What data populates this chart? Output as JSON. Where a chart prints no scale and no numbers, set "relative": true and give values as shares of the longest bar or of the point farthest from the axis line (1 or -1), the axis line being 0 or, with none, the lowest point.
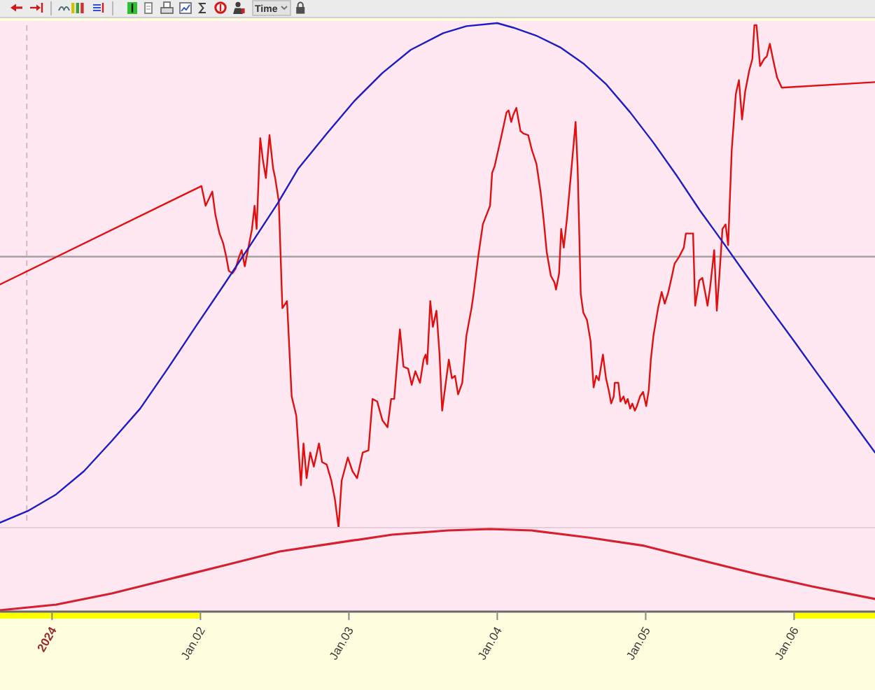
{
  "chart_data": [
    {
      "type": "line",
      "relative": true,
      "xlim": [
        "2023-12-31T15:35",
        "2024-01-06T13:05"
      ],
      "annotations": [
        "Time"
      ],
      "ref_lines": [
        {
          "axis": "y",
          "value": 0.537,
          "color": "#a8a0a4"
        },
        {
          "axis": "x",
          "value": "2023-12-31T19:55",
          "color": "#dcb4c4",
          "line_style": "dashed"
        }
      ],
      "series": [
        {
          "color": "#e01010",
          "x": [
            "2023-12-31T15:35",
            "2024-01-02T00:10",
            "2024-01-02T00:50",
            "2024-01-02T01:55",
            "2024-01-02T02:25",
            "2024-01-02T03:05",
            "2024-01-02T03:40",
            "2024-01-02T04:10",
            "2024-01-02T04:35",
            "2024-01-02T05:10",
            "2024-01-02T05:40",
            "2024-01-02T06:15",
            "2024-01-02T06:40",
            "2024-01-02T07:10",
            "2024-01-02T07:45",
            "2024-01-02T08:20",
            "2024-01-02T08:45",
            "2024-01-02T09:05",
            "2024-01-02T09:40",
            "2024-01-02T10:05",
            "2024-01-02T10:35",
            "2024-01-02T11:10",
            "2024-01-02T11:45",
            "2024-01-02T12:05",
            "2024-01-02T12:40",
            "2024-01-02T13:15",
            "2024-01-02T14:00",
            "2024-01-02T14:45",
            "2024-01-02T15:30",
            "2024-01-02T16:15",
            "2024-01-02T16:40",
            "2024-01-02T17:10",
            "2024-01-02T17:45",
            "2024-01-02T18:20",
            "2024-01-02T19:10",
            "2024-01-02T19:40",
            "2024-01-02T20:25",
            "2024-01-02T21:10",
            "2024-01-02T21:45",
            "2024-01-02T22:20",
            "2024-01-02T22:50",
            "2024-01-02T23:50",
            "2024-01-03T00:35",
            "2024-01-03T01:20",
            "2024-01-03T02:15",
            "2024-01-03T03:10",
            "2024-01-03T03:50",
            "2024-01-03T04:35",
            "2024-01-03T05:25",
            "2024-01-03T06:15",
            "2024-01-03T06:50",
            "2024-01-03T07:20",
            "2024-01-03T08:15",
            "2024-01-03T08:50",
            "2024-01-03T09:35",
            "2024-01-03T10:10",
            "2024-01-03T10:45",
            "2024-01-03T11:30",
            "2024-01-03T12:05",
            "2024-01-03T12:25",
            "2024-01-03T12:40",
            "2024-01-03T13:10",
            "2024-01-03T13:35",
            "2024-01-03T14:10",
            "2024-01-03T14:40",
            "2024-01-03T15:05",
            "2024-01-03T15:40",
            "2024-01-03T16:10",
            "2024-01-03T16:40",
            "2024-01-03T17:10",
            "2024-01-03T17:40",
            "2024-01-03T18:20",
            "2024-01-03T19:00",
            "2024-01-03T19:50",
            "2024-01-03T20:10",
            "2024-01-03T20:55",
            "2024-01-03T21:40",
            "2024-01-03T22:50",
            "2024-01-03T23:10",
            "2024-01-03T23:35",
            "2024-01-04T00:40",
            "2024-01-04T01:30",
            "2024-01-04T01:50",
            "2024-01-04T02:15",
            "2024-01-04T02:35",
            "2024-01-04T03:05",
            "2024-01-04T03:45",
            "2024-01-04T04:15",
            "2024-01-04T05:00",
            "2024-01-04T05:35",
            "2024-01-04T06:20",
            "2024-01-04T07:00",
            "2024-01-04T07:30",
            "2024-01-04T08:00",
            "2024-01-04T08:40",
            "2024-01-04T09:15",
            "2024-01-04T09:30",
            "2024-01-04T10:00",
            "2024-01-04T10:20",
            "2024-01-04T10:45",
            "2024-01-04T11:15",
            "2024-01-04T12:00",
            "2024-01-04T12:40",
            "2024-01-04T13:00",
            "2024-01-04T13:30",
            "2024-01-04T13:55",
            "2024-01-04T14:30",
            "2024-01-04T15:05",
            "2024-01-04T15:35",
            "2024-01-04T16:00",
            "2024-01-04T16:25",
            "2024-01-04T17:05",
            "2024-01-04T17:35",
            "2024-01-04T18:05",
            "2024-01-04T18:25",
            "2024-01-04T18:50",
            "2024-01-04T19:00",
            "2024-01-04T19:35",
            "2024-01-04T19:55",
            "2024-01-04T20:25",
            "2024-01-04T20:45",
            "2024-01-04T21:05",
            "2024-01-04T21:30",
            "2024-01-04T21:50",
            "2024-01-04T22:15",
            "2024-01-04T22:35",
            "2024-01-04T23:05",
            "2024-01-04T23:35",
            "2024-01-05T00:05",
            "2024-01-05T00:30",
            "2024-01-05T00:50",
            "2024-01-05T01:15",
            "2024-01-05T02:00",
            "2024-01-05T02:35",
            "2024-01-05T03:05",
            "2024-01-05T03:40",
            "2024-01-05T04:15",
            "2024-01-05T04:40",
            "2024-01-05T05:25",
            "2024-01-05T06:10",
            "2024-01-05T06:30",
            "2024-01-05T07:40",
            "2024-01-05T08:00",
            "2024-01-05T08:40",
            "2024-01-05T09:10",
            "2024-01-05T09:40",
            "2024-01-05T10:00",
            "2024-01-05T10:25",
            "2024-01-05T11:05",
            "2024-01-05T11:30",
            "2024-01-05T11:55",
            "2024-01-05T12:25",
            "2024-01-05T12:55",
            "2024-01-05T13:20",
            "2024-01-05T13:55",
            "2024-01-05T14:35",
            "2024-01-05T15:05",
            "2024-01-05T15:35",
            "2024-01-05T16:05",
            "2024-01-05T16:45",
            "2024-01-05T17:15",
            "2024-01-05T17:35",
            "2024-01-05T17:55",
            "2024-01-05T18:30",
            "2024-01-05T19:10",
            "2024-01-05T19:35",
            "2024-01-05T20:05",
            "2024-01-05T20:40",
            "2024-01-05T21:15",
            "2024-01-05T22:00",
            "2024-01-06T13:05"
          ],
          "values": [
            0.482,
            0.677,
            0.638,
            0.666,
            0.62,
            0.583,
            0.564,
            0.537,
            0.509,
            0.504,
            0.513,
            0.537,
            0.55,
            0.518,
            0.555,
            0.592,
            0.638,
            0.592,
            0.772,
            0.73,
            0.693,
            0.778,
            0.712,
            0.693,
            0.647,
            0.435,
            0.449,
            0.26,
            0.222,
            0.084,
            0.167,
            0.098,
            0.149,
            0.121,
            0.167,
            0.13,
            0.125,
            0.093,
            0.056,
            0,
            0.093,
            0.139,
            0.112,
            0.098,
            0.149,
            0.153,
            0.255,
            0.25,
            0.213,
            0.199,
            0.255,
            0.255,
            0.393,
            0.319,
            0.315,
            0.283,
            0.31,
            0.287,
            0.333,
            0.343,
            0.324,
            0.449,
            0.398,
            0.43,
            0.343,
            0.232,
            0.287,
            0.333,
            0.296,
            0.301,
            0.264,
            0.287,
            0.38,
            0.435,
            0.463,
            0.537,
            0.601,
            0.638,
            0.703,
            0.717,
            0.776,
            0.823,
            0.827,
            0.804,
            0.818,
            0.832,
            0.786,
            0.781,
            0.778,
            0.749,
            0.721,
            0.666,
            0.61,
            0.546,
            0.499,
            0.486,
            0.472,
            0.504,
            0.592,
            0.555,
            0.61,
            0.712,
            0.804,
            0.712,
            0.463,
            0.426,
            0.412,
            0.37,
            0.278,
            0.301,
            0.292,
            0.343,
            0.296,
            0.269,
            0.246,
            0.26,
            0.287,
            0.287,
            0.25,
            0.26,
            0.246,
            0.255,
            0.236,
            0.246,
            0.232,
            0.241,
            0.26,
            0.269,
            0.241,
            0.273,
            0.333,
            0.38,
            0.435,
            0.467,
            0.444,
            0.467,
            0.499,
            0.523,
            0.537,
            0.555,
            0.583,
            0.583,
            0.44,
            0.49,
            0.495,
            0.463,
            0.44,
            0.476,
            0.55,
            0.43,
            0.499,
            0.592,
            0.601,
            0.56,
            0.749,
            0.86,
            0.887,
            0.809,
            0.864,
            0.906,
            0.929,
            0.996,
            0.996,
            0.915,
            0.929,
            0.934,
            0.959,
            0.924,
            0.892,
            0.872,
            0.883
          ]
        },
        {
          "color": "#1c1cc4",
          "x": [
            "2023-12-31T15:35",
            "2023-12-31T20:05",
            "2024-01-01T00:40",
            "2024-01-01T05:10",
            "2024-01-01T09:40",
            "2024-01-01T14:15",
            "2024-01-01T18:45",
            "2024-01-01T23:15",
            "2024-01-02T03:50",
            "2024-01-02T08:20",
            "2024-01-02T12:30",
            "2024-01-02T15:50",
            "2024-01-02T20:25",
            "2024-01-03T00:55",
            "2024-01-03T05:25",
            "2024-01-03T10:00",
            "2024-01-03T15:15",
            "2024-01-03T19:00",
            "2024-01-04T00:00",
            "2024-01-04T02:35",
            "2024-01-04T06:20",
            "2024-01-04T10:10",
            "2024-01-04T13:55",
            "2024-01-04T17:40",
            "2024-01-04T21:30",
            "2024-01-05T01:15",
            "2024-01-05T05:00",
            "2024-01-05T08:45",
            "2024-01-05T12:35",
            "2024-01-05T16:20",
            "2024-01-05T20:05",
            "2024-01-05T23:55",
            "2024-01-06T03:40",
            "2024-01-06T07:25",
            "2024-01-06T13:05"
          ],
          "values": [
            0.01,
            0.033,
            0.066,
            0.112,
            0.172,
            0.236,
            0.316,
            0.399,
            0.482,
            0.565,
            0.643,
            0.712,
            0.781,
            0.846,
            0.901,
            0.947,
            0.98,
            0.994,
            1,
            0.991,
            0.975,
            0.952,
            0.92,
            0.878,
            0.823,
            0.763,
            0.698,
            0.629,
            0.564,
            0.499,
            0.435,
            0.371,
            0.307,
            0.244,
            0.149
          ]
        }
      ]
    },
    {
      "type": "line",
      "relative": true,
      "xlim": [
        "2023-12-31T15:35",
        "2024-01-06T13:05"
      ],
      "xticks": [
        {
          "value": "2024-01-01",
          "label": "2024"
        },
        {
          "value": "2024-01-02",
          "label": "Jan.02"
        },
        {
          "value": "2024-01-03",
          "label": "Jan.03"
        },
        {
          "value": "2024-01-04",
          "label": "Jan.04"
        },
        {
          "value": "2024-01-05",
          "label": "Jan.05"
        },
        {
          "value": "2024-01-06",
          "label": "Jan.06"
        }
      ],
      "series": [
        {
          "color": "#d42030",
          "x": [
            "2023-12-31T15:35",
            "2024-01-01T00:40",
            "2024-01-01T09:40",
            "2024-01-01T18:45",
            "2024-01-02T03:50",
            "2024-01-02T12:50",
            "2024-01-02T21:55",
            "2024-01-03T07:00",
            "2024-01-03T16:00",
            "2024-01-03T22:50",
            "2024-01-04T05:35",
            "2024-01-04T14:40",
            "2024-01-04T23:45",
            "2024-01-05T08:45",
            "2024-01-05T17:50",
            "2024-01-06T02:55",
            "2024-01-06T13:05"
          ],
          "values": [
            0.017,
            0.085,
            0.22,
            0.39,
            0.559,
            0.729,
            0.831,
            0.932,
            0.983,
            1,
            0.983,
            0.898,
            0.797,
            0.627,
            0.458,
            0.305,
            0.153
          ]
        }
      ]
    }
  ]
}
